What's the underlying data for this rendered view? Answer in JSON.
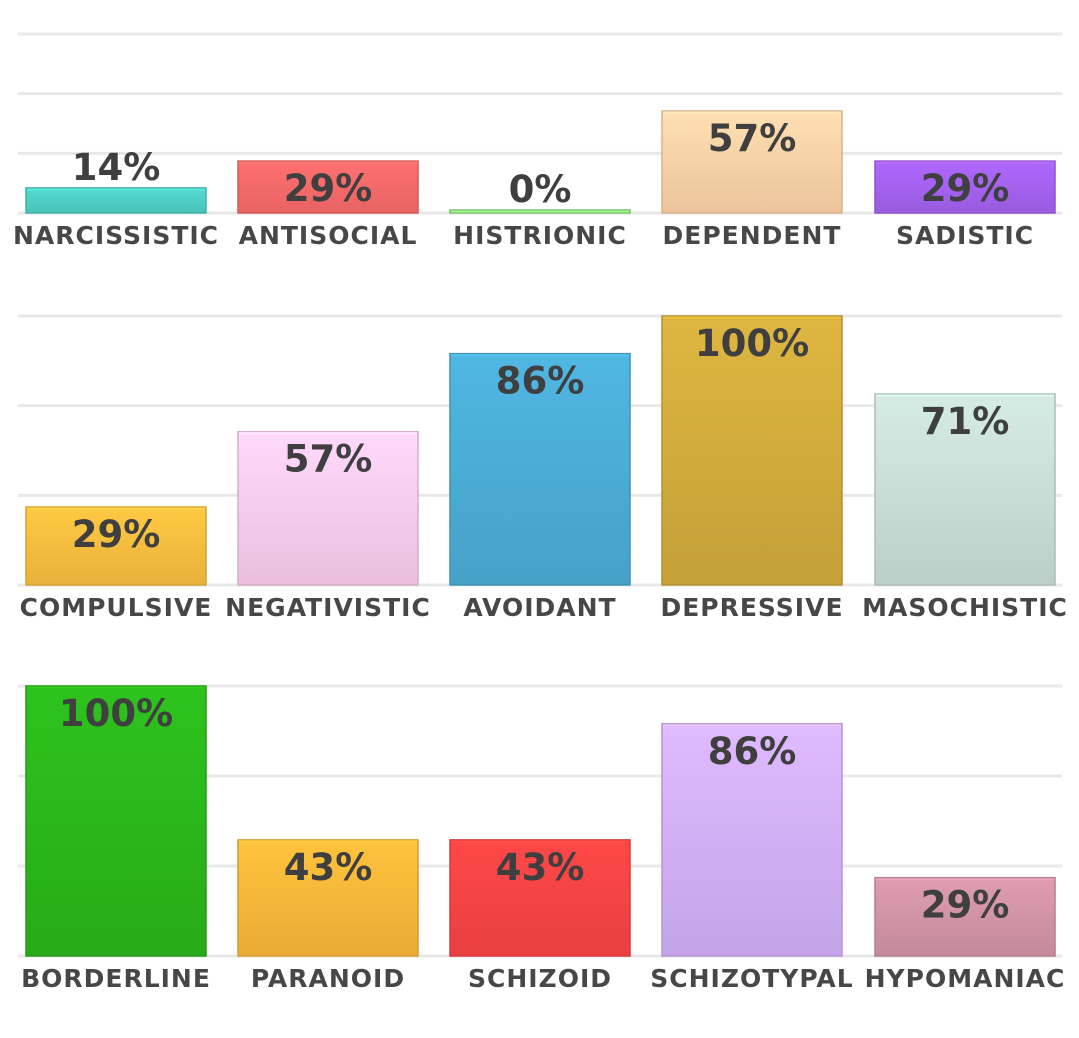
{
  "chart_data": [
    {
      "type": "bar",
      "title": "",
      "xlabel": "",
      "ylabel": "",
      "ylim": [
        0,
        100
      ],
      "grid": true,
      "categories": [
        "NARCISSISTIC",
        "ANTISOCIAL",
        "HISTRIONIC",
        "DEPENDENT",
        "SADISTIC"
      ],
      "values": [
        14,
        29,
        0,
        57,
        29
      ],
      "value_labels": [
        "14%",
        "29%",
        "0%",
        "57%",
        "29%"
      ],
      "colors": [
        "#4fcfc6",
        "#f96a6a",
        "#8de07c",
        "#fdd3a8",
        "#a562f0"
      ]
    },
    {
      "type": "bar",
      "title": "",
      "xlabel": "",
      "ylabel": "",
      "ylim": [
        0,
        100
      ],
      "grid": true,
      "categories": [
        "COMPULSIVE",
        "NEGATIVISTIC",
        "AVOIDANT",
        "DEPRESSIVE",
        "MASOCHISTIC"
      ],
      "values": [
        29,
        57,
        86,
        100,
        71
      ],
      "value_labels": [
        "29%",
        "57%",
        "86%",
        "100%",
        "71%"
      ],
      "colors": [
        "#fbbe3f",
        "#fbcdee",
        "#4badd6",
        "#d2ac3c",
        "#c9dfd7"
      ]
    },
    {
      "type": "bar",
      "title": "",
      "xlabel": "",
      "ylabel": "",
      "ylim": [
        0,
        100
      ],
      "grid": true,
      "categories": [
        "BORDERLINE",
        "PARANOID",
        "SCHIZOID",
        "SCHIZOTYPAL",
        "HYPOMANIAC"
      ],
      "values": [
        100,
        43,
        43,
        86,
        29
      ],
      "value_labels": [
        "100%",
        "43%",
        "43%",
        "86%",
        "29%"
      ],
      "colors": [
        "#2ab81a",
        "#fbb83a",
        "#fb4444",
        "#d3aff9",
        "#d294a6"
      ]
    }
  ]
}
